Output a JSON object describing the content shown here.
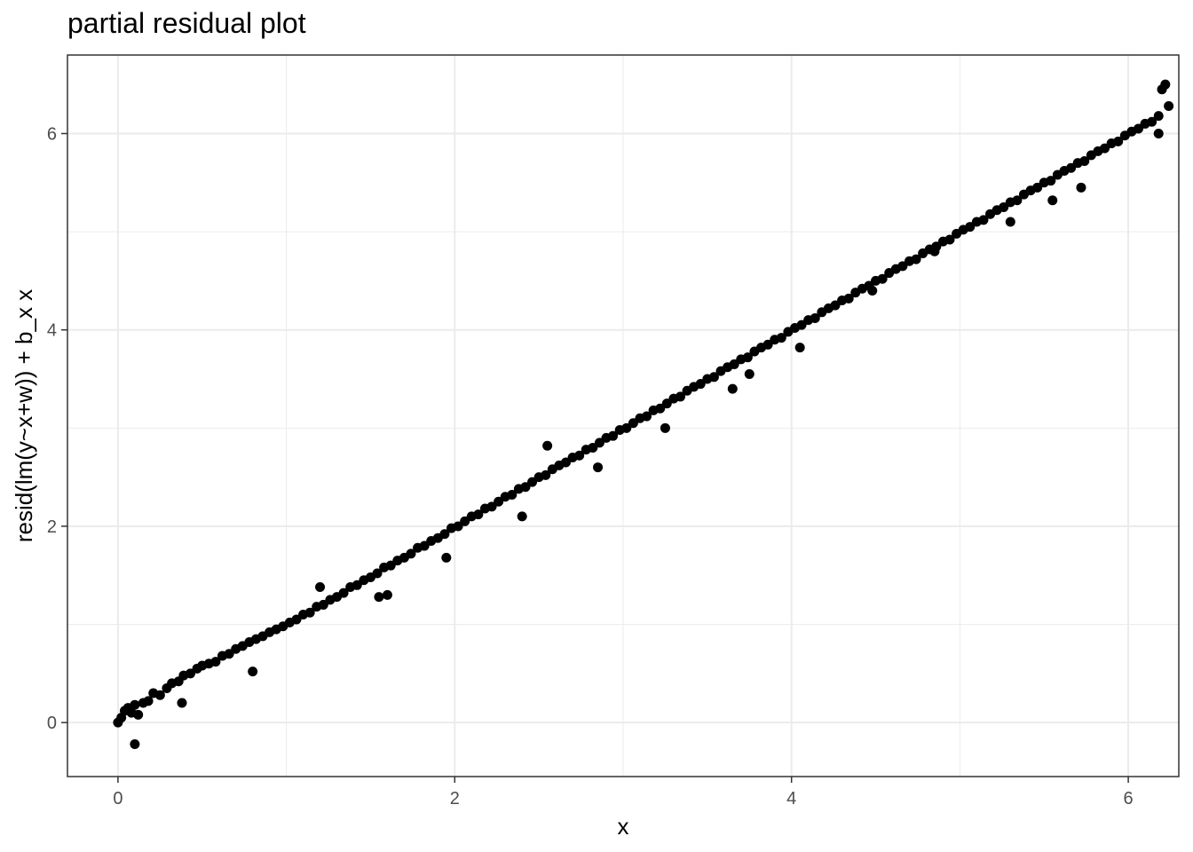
{
  "chart_data": {
    "type": "scatter",
    "title": "partial residual plot",
    "xlabel": "x",
    "ylabel": "resid(lm(y~x+w)) + b_x x",
    "xlim": [
      -0.3,
      6.3
    ],
    "ylim": [
      -0.55,
      6.8
    ],
    "x_ticks": [
      0,
      2,
      4,
      6
    ],
    "y_ticks": [
      0,
      2,
      4,
      6
    ],
    "x_tick_labels": [
      "0",
      "2",
      "4",
      "6"
    ],
    "y_tick_labels": [
      "0",
      "2",
      "4",
      "6"
    ],
    "grid": true,
    "legend": "none",
    "point_color": "#000000",
    "grid_color": "#ebebeb",
    "series": [
      {
        "x": [
          0.0,
          0.02,
          0.04,
          0.06,
          0.08,
          0.1,
          0.12,
          0.15,
          0.18,
          0.21,
          0.25,
          0.29,
          0.32,
          0.36,
          0.39,
          0.43,
          0.47,
          0.5,
          0.54,
          0.58,
          0.62,
          0.66,
          0.7,
          0.74,
          0.78,
          0.82,
          0.86,
          0.9,
          0.94,
          0.98,
          1.02,
          1.06,
          1.1,
          1.14,
          1.18,
          1.22,
          1.26,
          1.3,
          1.34,
          1.38,
          1.42,
          1.46,
          1.5,
          1.54,
          1.58,
          1.62,
          1.66,
          1.7,
          1.74,
          1.78,
          1.82,
          1.86,
          1.9,
          1.94,
          1.98,
          2.02,
          2.06,
          2.1,
          2.14,
          2.18,
          2.22,
          2.26,
          2.3,
          2.34,
          2.38,
          2.42,
          2.46,
          2.5,
          2.54,
          2.58,
          2.62,
          2.66,
          2.7,
          2.74,
          2.78,
          2.82,
          2.86,
          2.9,
          2.94,
          2.98,
          3.02,
          3.06,
          3.1,
          3.14,
          3.18,
          3.22,
          3.26,
          3.3,
          3.34,
          3.38,
          3.42,
          3.46,
          3.5,
          3.54,
          3.58,
          3.62,
          3.66,
          3.7,
          3.74,
          3.78,
          3.82,
          3.86,
          3.9,
          3.94,
          3.98,
          4.02,
          4.06,
          4.1,
          4.14,
          4.18,
          4.22,
          4.26,
          4.3,
          4.34,
          4.38,
          4.42,
          4.46,
          4.5,
          4.54,
          4.58,
          4.62,
          4.66,
          4.7,
          4.74,
          4.78,
          4.82,
          4.86,
          4.9,
          4.94,
          4.98,
          5.02,
          5.06,
          5.1,
          5.14,
          5.18,
          5.22,
          5.26,
          5.3,
          5.34,
          5.38,
          5.42,
          5.46,
          5.5,
          5.54,
          5.58,
          5.62,
          5.66,
          5.7,
          5.74,
          5.78,
          5.82,
          5.86,
          5.9,
          5.94,
          5.98,
          6.02,
          6.06,
          6.1,
          6.14,
          6.18,
          6.2,
          6.22,
          6.24,
          0.1,
          0.38,
          0.8,
          1.2,
          1.55,
          1.95,
          2.4,
          2.85,
          3.25,
          3.65,
          4.05,
          4.48,
          4.85,
          5.3,
          5.72,
          6.18,
          1.6,
          2.55,
          3.75,
          5.55
        ],
        "y": [
          0.0,
          0.05,
          0.12,
          0.15,
          0.1,
          0.18,
          0.08,
          0.2,
          0.22,
          0.3,
          0.28,
          0.35,
          0.4,
          0.42,
          0.48,
          0.5,
          0.55,
          0.58,
          0.6,
          0.62,
          0.68,
          0.7,
          0.75,
          0.78,
          0.82,
          0.85,
          0.88,
          0.92,
          0.95,
          0.98,
          1.02,
          1.05,
          1.1,
          1.12,
          1.18,
          1.2,
          1.25,
          1.28,
          1.32,
          1.38,
          1.4,
          1.45,
          1.48,
          1.52,
          1.58,
          1.6,
          1.65,
          1.68,
          1.72,
          1.78,
          1.8,
          1.85,
          1.88,
          1.92,
          1.98,
          2.0,
          2.05,
          2.1,
          2.12,
          2.18,
          2.2,
          2.25,
          2.3,
          2.32,
          2.38,
          2.4,
          2.45,
          2.5,
          2.52,
          2.58,
          2.62,
          2.65,
          2.7,
          2.72,
          2.78,
          2.8,
          2.85,
          2.9,
          2.92,
          2.98,
          3.0,
          3.05,
          3.1,
          3.12,
          3.18,
          3.2,
          3.25,
          3.3,
          3.32,
          3.38,
          3.42,
          3.45,
          3.5,
          3.52,
          3.58,
          3.62,
          3.65,
          3.7,
          3.72,
          3.78,
          3.82,
          3.85,
          3.9,
          3.92,
          3.98,
          4.02,
          4.05,
          4.1,
          4.12,
          4.18,
          4.22,
          4.25,
          4.3,
          4.32,
          4.38,
          4.42,
          4.45,
          4.5,
          4.52,
          4.58,
          4.62,
          4.65,
          4.7,
          4.72,
          4.78,
          4.82,
          4.85,
          4.9,
          4.92,
          4.98,
          5.02,
          5.05,
          5.1,
          5.12,
          5.18,
          5.22,
          5.25,
          5.3,
          5.32,
          5.38,
          5.42,
          5.45,
          5.5,
          5.52,
          5.58,
          5.62,
          5.65,
          5.7,
          5.72,
          5.78,
          5.82,
          5.85,
          5.9,
          5.92,
          5.98,
          6.02,
          6.05,
          6.1,
          6.12,
          6.18,
          6.45,
          6.5,
          6.28,
          -0.22,
          0.2,
          0.52,
          1.38,
          1.28,
          1.68,
          2.1,
          2.6,
          3.0,
          3.4,
          3.82,
          4.4,
          4.8,
          5.1,
          5.45,
          6.0,
          1.3,
          2.82,
          3.55,
          5.32
        ]
      }
    ]
  }
}
